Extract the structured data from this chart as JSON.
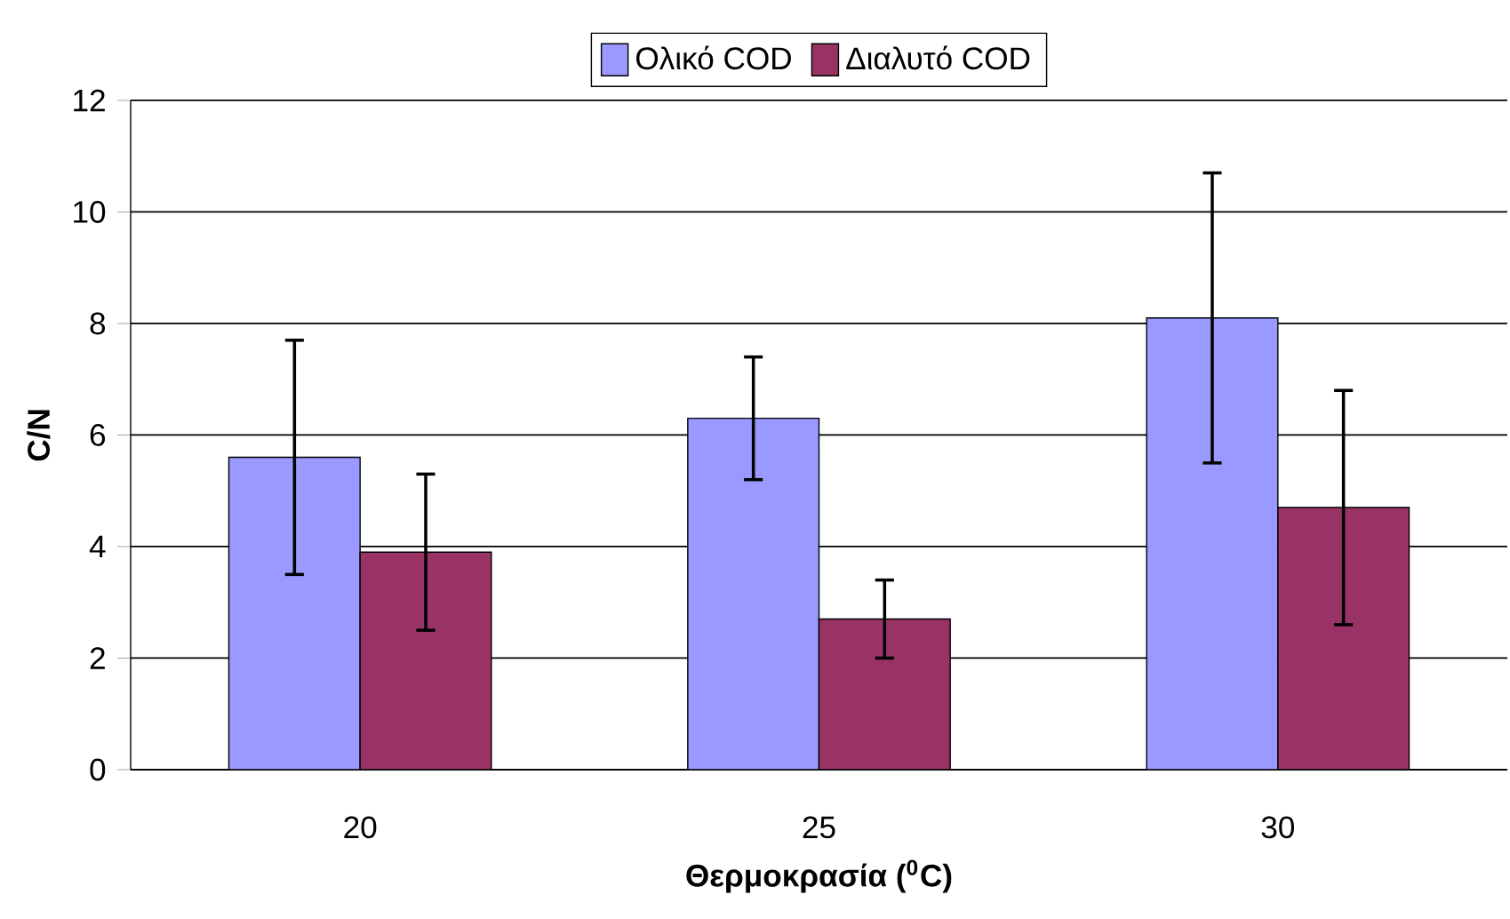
{
  "chart_data": {
    "type": "bar",
    "xlabel": "Θερμοκρασία ($^{0}$C)",
    "ylabel": "C/N",
    "categories": [
      "20",
      "25",
      "30"
    ],
    "series": [
      {
        "name": "Ολικό COD",
        "color": "#9999ff",
        "values": [
          5.6,
          6.3,
          8.1
        ],
        "errors": [
          [
            3.5,
            7.7
          ],
          [
            5.2,
            7.4
          ],
          [
            5.5,
            10.7
          ]
        ]
      },
      {
        "name": "Διαλυτό COD",
        "color": "#993366",
        "values": [
          3.9,
          2.7,
          4.7
        ],
        "errors": [
          [
            2.5,
            5.3
          ],
          [
            2.0,
            3.4
          ],
          [
            2.6,
            6.8
          ]
        ]
      }
    ],
    "ylim": [
      0,
      12
    ],
    "yticks": [
      0,
      2,
      4,
      6,
      8,
      10,
      12
    ],
    "grid": "y",
    "legend": "top"
  }
}
